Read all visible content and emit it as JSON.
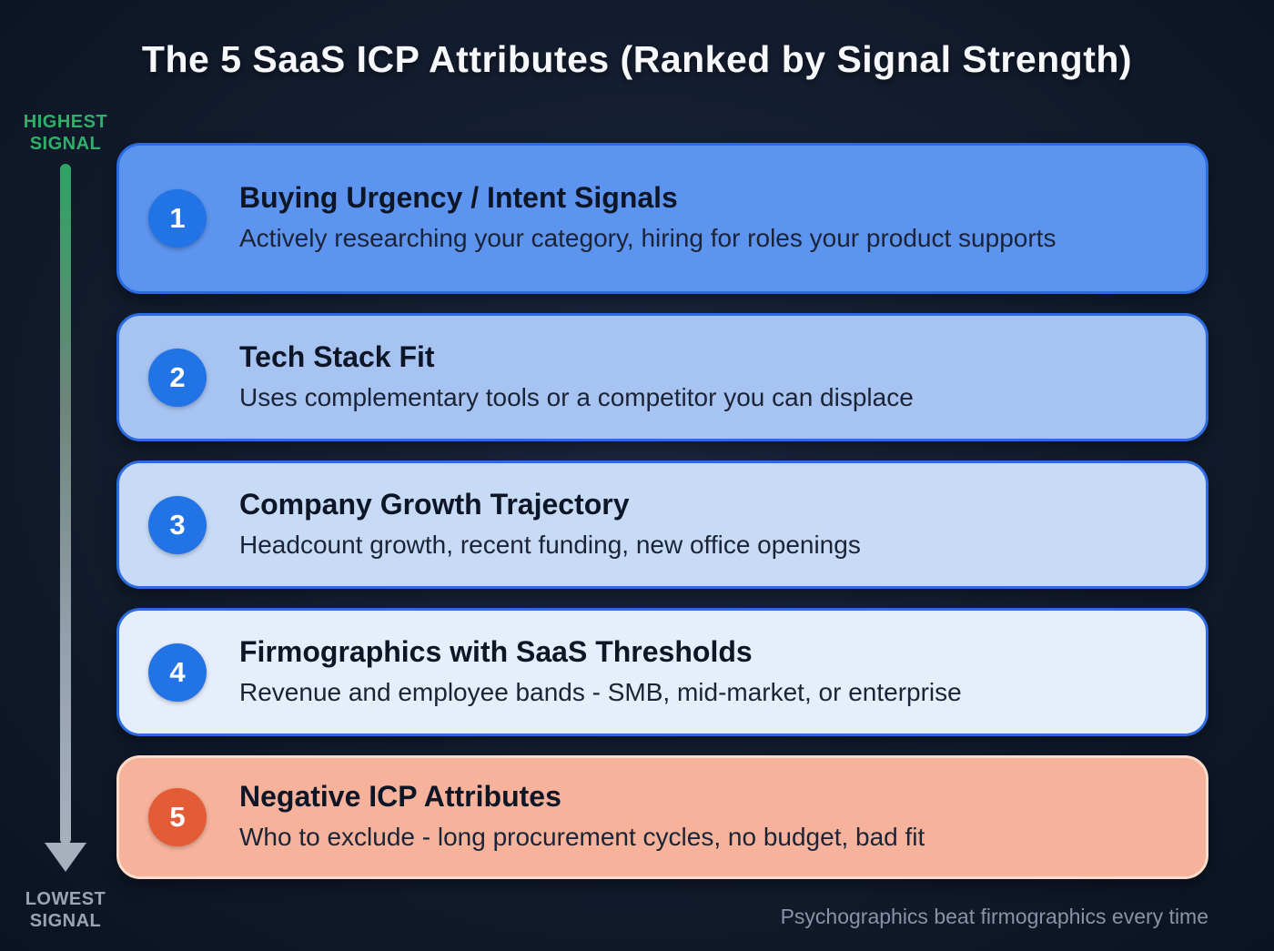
{
  "page": {
    "title": "The 5 SaaS ICP Attributes (Ranked by Signal Strength)",
    "footer": "Psychographics beat firmographics every time"
  },
  "signal_axis": {
    "top_label": "HIGHEST\nSIGNAL",
    "bottom_label": "LOWEST\nSIGNAL",
    "top_color": "#2fb068",
    "bottom_color": "#9aa4b3",
    "arrow_gradient_top": "#2da463",
    "arrow_gradient_bottom": "#a7b1bd"
  },
  "items": [
    {
      "rank": "1",
      "title": "Buying Urgency / Intent Signals",
      "description": "Actively researching your category, hiring for roles your product supports",
      "card_bg": "#5d94ef",
      "card_border": "#2b6ce1",
      "badge_bg": "#2273e6"
    },
    {
      "rank": "2",
      "title": "Tech Stack Fit",
      "description": "Uses complementary tools or a competitor you can displace",
      "card_bg": "#a6c3f1",
      "card_border": "#2b6ce1",
      "badge_bg": "#2273e6"
    },
    {
      "rank": "3",
      "title": "Company Growth Trajectory",
      "description": "Headcount growth, recent funding, new office openings",
      "card_bg": "#c7daf6",
      "card_border": "#2b6ce1",
      "badge_bg": "#2273e6"
    },
    {
      "rank": "4",
      "title": "Firmographics with SaaS Thresholds",
      "description": "Revenue and employee bands - SMB, mid-market, or enterprise",
      "card_bg": "#e7eefb",
      "card_border": "#2b6ce1",
      "badge_bg": "#2273e6"
    },
    {
      "rank": "5",
      "title": "Negative ICP Attributes",
      "description": "Who to exclude - long procurement cycles, no budget, bad fit",
      "card_bg": "#f6b29b",
      "card_border": "#fcdccb",
      "badge_bg": "#e45c36"
    }
  ]
}
